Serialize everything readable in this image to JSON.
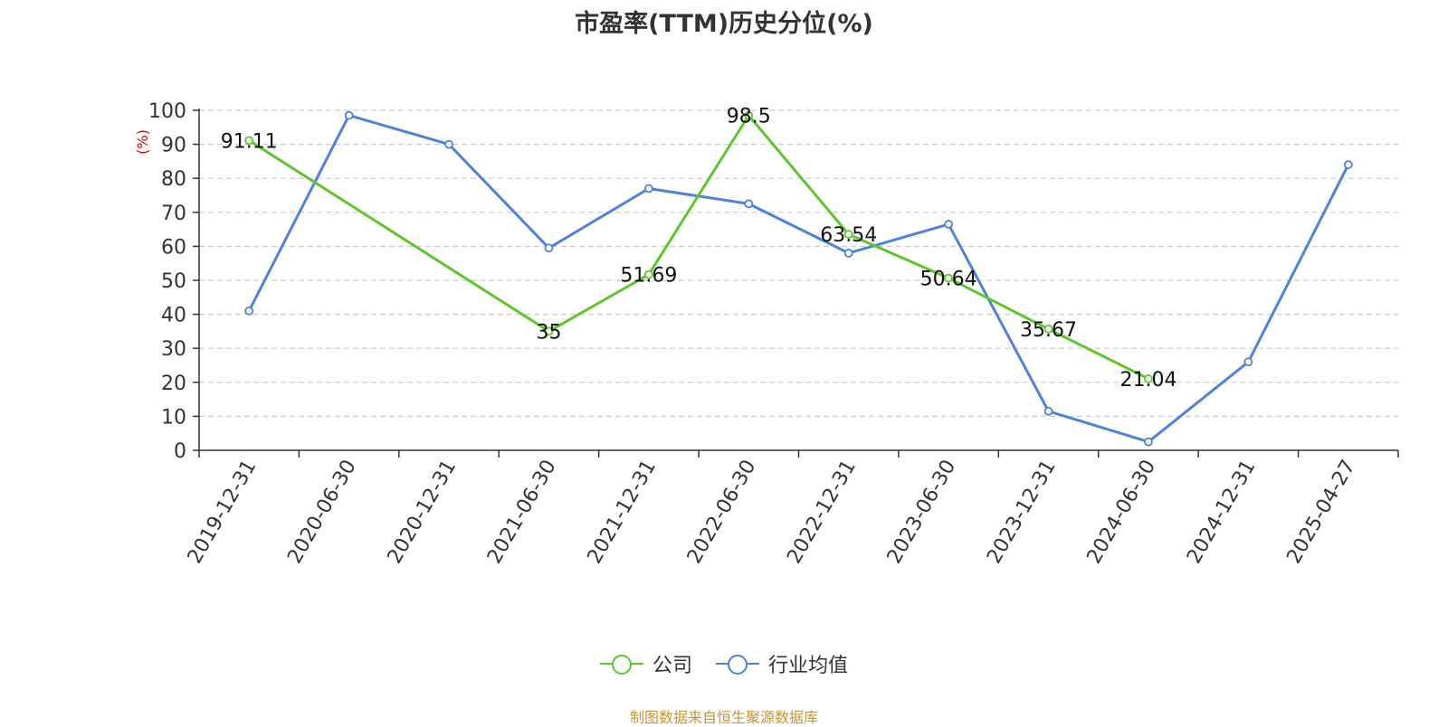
{
  "chart_data": {
    "type": "line",
    "title": "市盈率(TTM)历史分位(%)",
    "ylabel": "(%)",
    "ylim": [
      0,
      100
    ],
    "yticks": [
      0,
      10,
      20,
      30,
      40,
      50,
      60,
      70,
      80,
      90,
      100
    ],
    "categories": [
      "2019-12-31",
      "2020-06-30",
      "2020-12-31",
      "2021-06-30",
      "2021-12-31",
      "2022-06-30",
      "2022-12-31",
      "2023-06-30",
      "2023-12-31",
      "2024-06-30",
      "2024-12-31",
      "2025-04-27"
    ],
    "grid": true,
    "legend_position": "bottom",
    "series": [
      {
        "name": "公司",
        "color": "#5cc72b",
        "values": [
          91.11,
          null,
          null,
          35,
          51.69,
          98.5,
          63.54,
          50.64,
          35.67,
          21.04,
          null,
          null
        ],
        "labels": [
          "91.11",
          "",
          "",
          "35",
          "51.69",
          "98.5",
          "63.54",
          "50.64",
          "35.67",
          "21.04",
          "",
          ""
        ]
      },
      {
        "name": "行业均值",
        "color": "#4e82dc",
        "values": [
          41,
          98.5,
          90,
          59.5,
          77,
          72.5,
          58,
          66.5,
          11.5,
          2.5,
          26,
          84
        ]
      }
    ]
  },
  "source": "制图数据来自恒生聚源数据库"
}
